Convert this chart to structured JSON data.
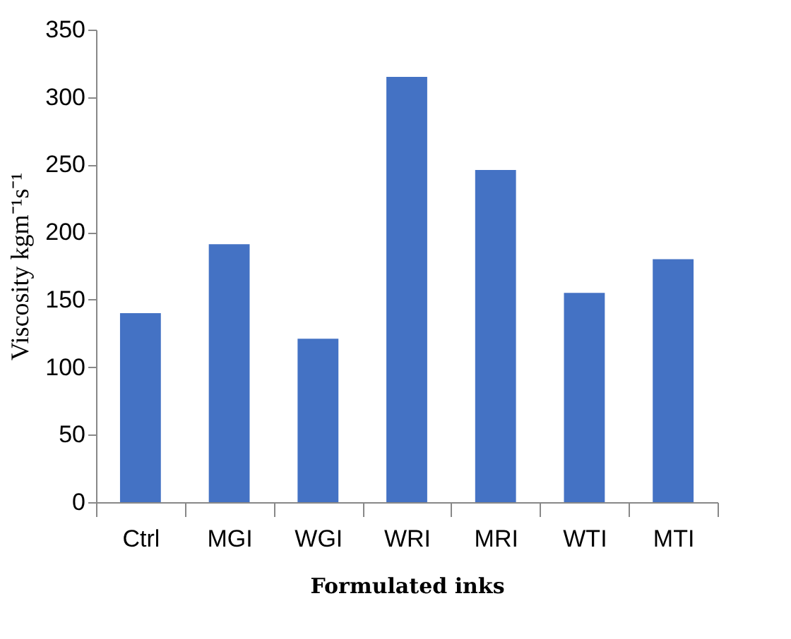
{
  "chart_data": {
    "type": "bar",
    "xlabel": "Formulated inks",
    "ylabel": "Viscosity kgm⁻¹s⁻¹",
    "categories": [
      "Ctrl",
      "MGI",
      "WGI",
      "WRI",
      "MRI",
      "WTI",
      "MTI"
    ],
    "values": [
      140,
      191,
      121,
      315,
      246,
      155,
      180
    ],
    "color": "#4472c4",
    "ylim": [
      0,
      350
    ],
    "yticks": [
      0,
      50,
      100,
      150,
      200,
      250,
      300,
      350
    ],
    "grid": false
  }
}
